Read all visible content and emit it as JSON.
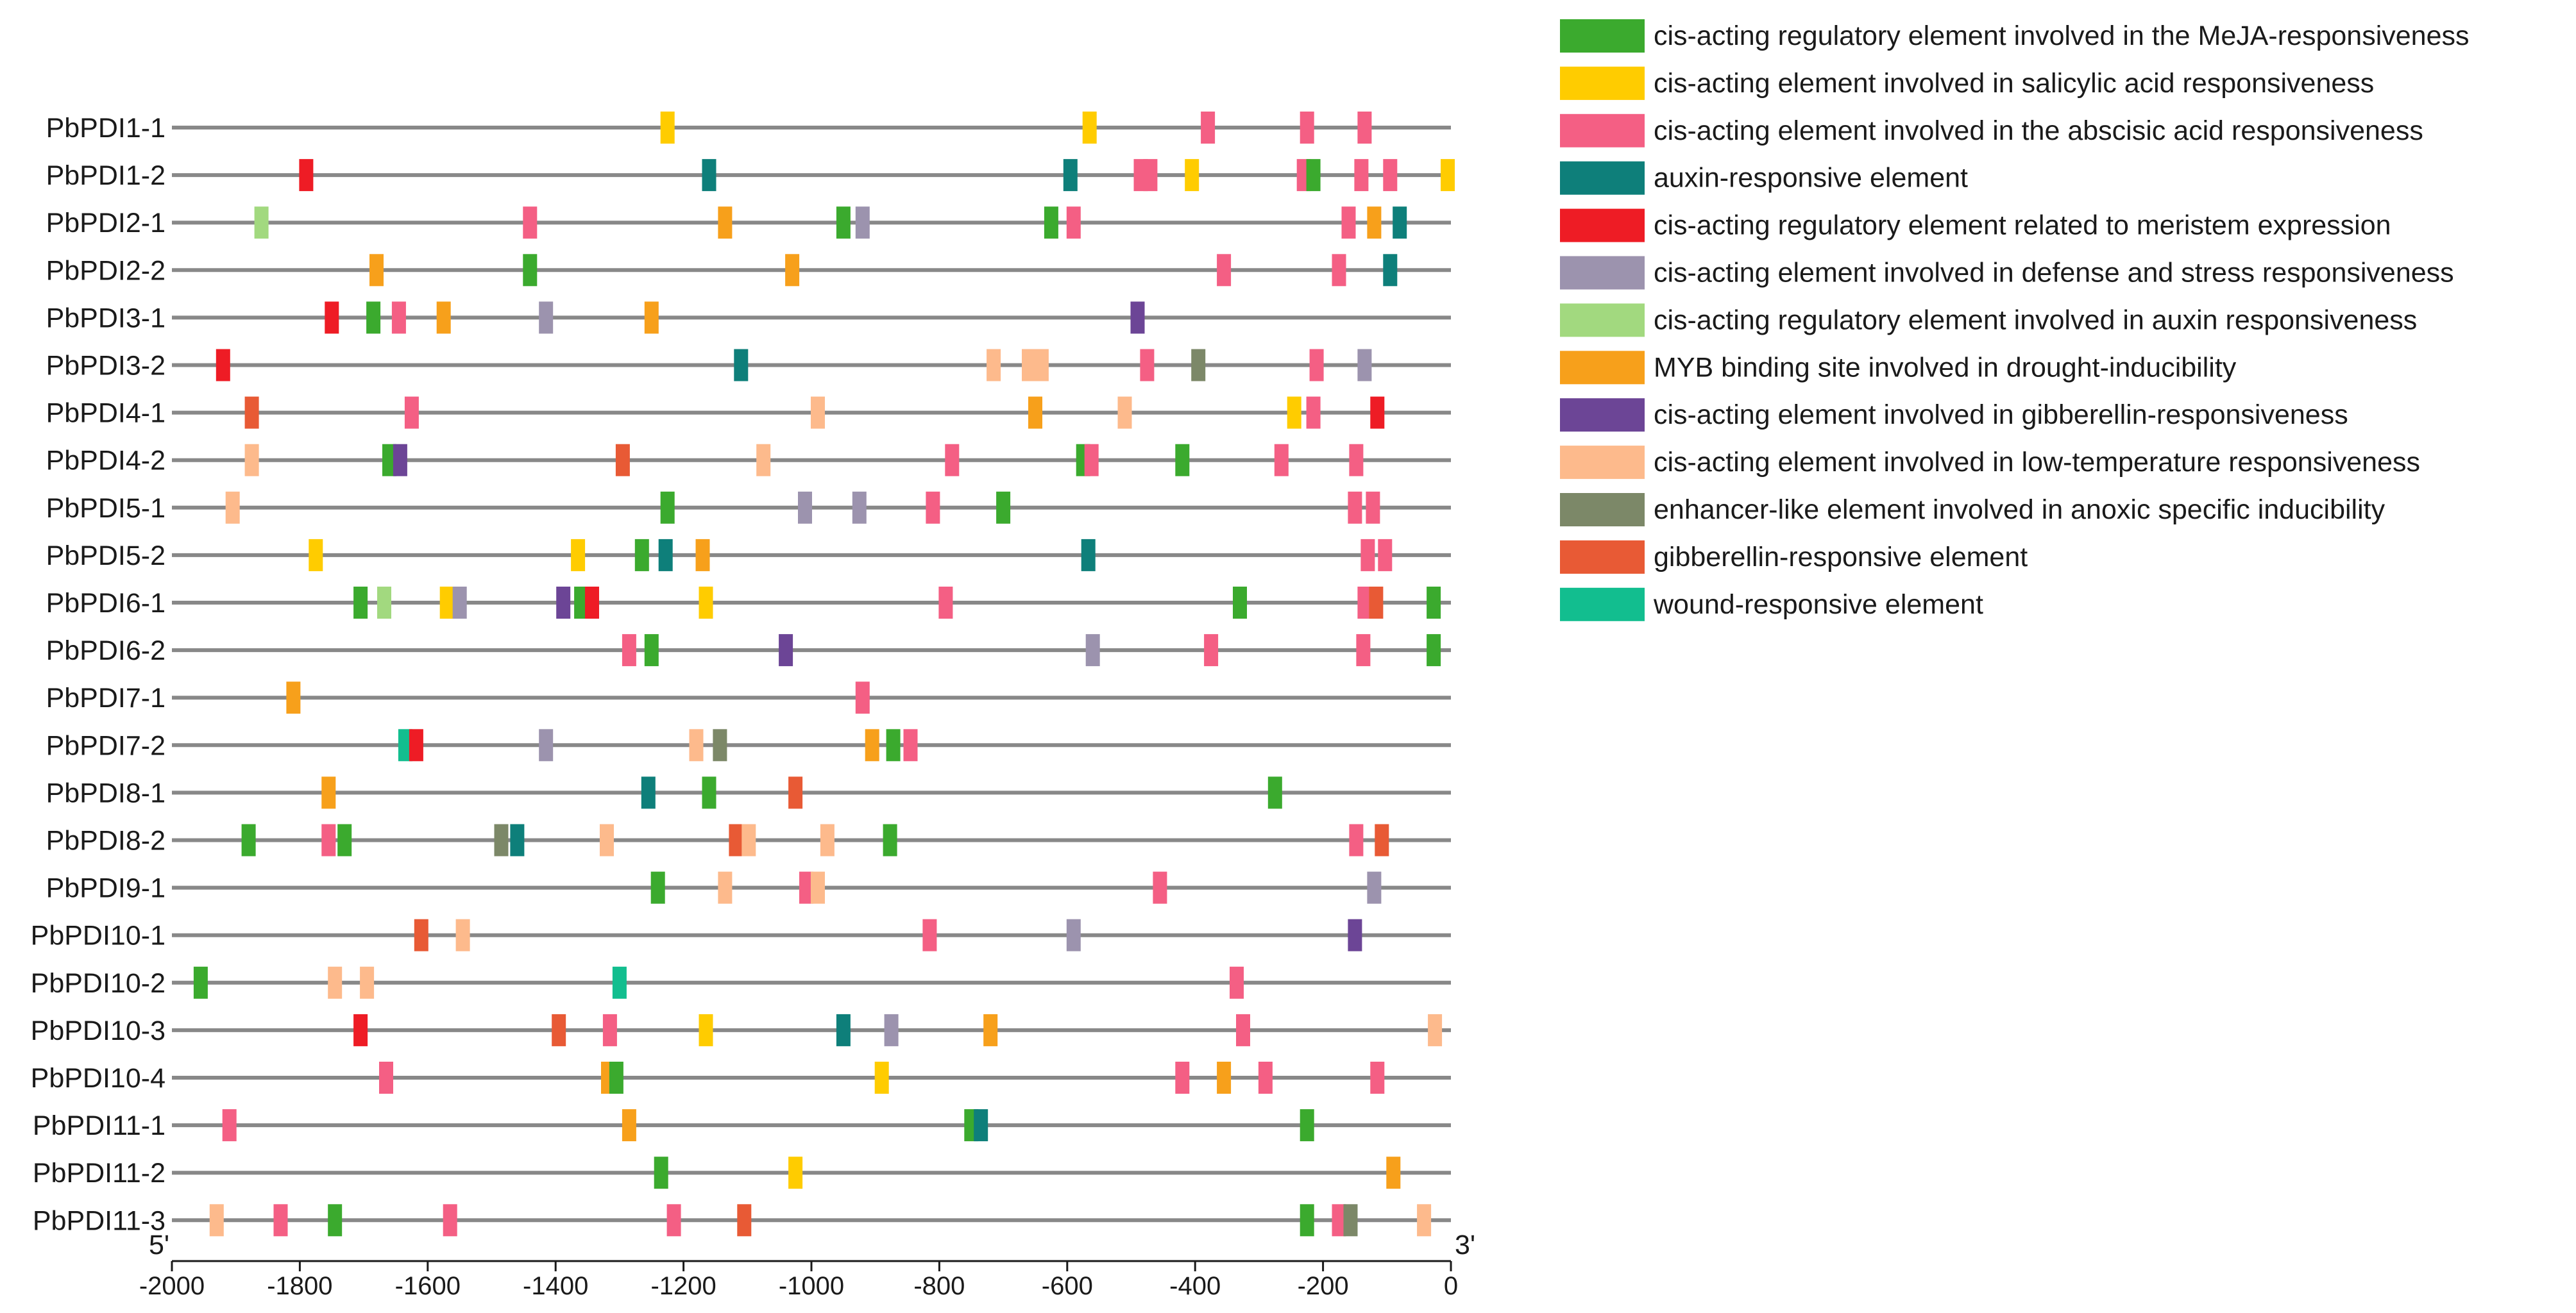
{
  "chart_data": {
    "type": "promoter-element-map",
    "x_axis": {
      "range": [
        -2000,
        0
      ],
      "ticks": [
        -2000,
        -1800,
        -1600,
        -1400,
        -1200,
        -1000,
        -800,
        -600,
        -400,
        -200,
        0
      ],
      "start_label": "5'",
      "end_label": "3'"
    },
    "legend": [
      {
        "key": "meja",
        "label": "cis-acting regulatory element involved in the MeJA-responsiveness",
        "color": "#3BAA2E"
      },
      {
        "key": "sa",
        "label": "cis-acting element involved in salicylic acid responsiveness",
        "color": "#FFCC00"
      },
      {
        "key": "aba",
        "label": "cis-acting element involved in the abscisic acid responsiveness",
        "color": "#F45F84"
      },
      {
        "key": "auxin",
        "label": "auxin-responsive element",
        "color": "#0E7F7A"
      },
      {
        "key": "meristem",
        "label": "cis-acting regulatory element related to meristem expression",
        "color": "#EE1C25"
      },
      {
        "key": "defense",
        "label": "cis-acting element involved in defense and stress responsiveness",
        "color": "#9C93AE"
      },
      {
        "key": "auxin2",
        "label": "cis-acting regulatory element involved in auxin responsiveness",
        "color": "#A2D97F"
      },
      {
        "key": "myb",
        "label": "MYB binding site involved in drought-inducibility",
        "color": "#F7A01B"
      },
      {
        "key": "ga",
        "label": "cis-acting element involved in gibberellin-responsiveness",
        "color": "#6C4596"
      },
      {
        "key": "lowtemp",
        "label": "cis-acting element involved in low-temperature responsiveness",
        "color": "#FDBA8C"
      },
      {
        "key": "anoxic",
        "label": "enhancer-like element involved in anoxic specific inducibility",
        "color": "#7C8868"
      },
      {
        "key": "ga2",
        "label": "gibberellin-responsive element",
        "color": "#E85A35"
      },
      {
        "key": "wound",
        "label": "wound-responsive element",
        "color": "#12BE8F"
      }
    ],
    "genes": [
      {
        "name": "PbPDI1-1",
        "elements": [
          [
            "sa",
            -1225
          ],
          [
            "sa",
            -565
          ],
          [
            "aba",
            -380
          ],
          [
            "aba",
            -225
          ],
          [
            "aba",
            -135
          ]
        ]
      },
      {
        "name": "PbPDI1-2",
        "elements": [
          [
            "meristem",
            -1790
          ],
          [
            "auxin",
            -1160
          ],
          [
            "auxin",
            -595
          ],
          [
            "aba",
            -485
          ],
          [
            "aba",
            -470
          ],
          [
            "sa",
            -405
          ],
          [
            "aba",
            -230
          ],
          [
            "meja",
            -215
          ],
          [
            "aba",
            -140
          ],
          [
            "aba",
            -95
          ],
          [
            "sa",
            -5
          ]
        ]
      },
      {
        "name": "PbPDI2-1",
        "elements": [
          [
            "auxin2",
            -1860
          ],
          [
            "aba",
            -1440
          ],
          [
            "myb",
            -1135
          ],
          [
            "meja",
            -950
          ],
          [
            "defense",
            -920
          ],
          [
            "meja",
            -625
          ],
          [
            "aba",
            -590
          ],
          [
            "aba",
            -160
          ],
          [
            "myb",
            -120
          ],
          [
            "auxin",
            -80
          ]
        ]
      },
      {
        "name": "PbPDI2-2",
        "elements": [
          [
            "myb",
            -1680
          ],
          [
            "meja",
            -1440
          ],
          [
            "myb",
            -1030
          ],
          [
            "aba",
            -355
          ],
          [
            "aba",
            -175
          ],
          [
            "auxin",
            -95
          ]
        ]
      },
      {
        "name": "PbPDI3-1",
        "elements": [
          [
            "meristem",
            -1750
          ],
          [
            "meja",
            -1685
          ],
          [
            "aba",
            -1645
          ],
          [
            "myb",
            -1575
          ],
          [
            "defense",
            -1415
          ],
          [
            "myb",
            -1250
          ],
          [
            "ga",
            -490
          ]
        ]
      },
      {
        "name": "PbPDI3-2",
        "elements": [
          [
            "meristem",
            -1920
          ],
          [
            "auxin",
            -1110
          ],
          [
            "lowtemp",
            -715
          ],
          [
            "lowtemp",
            -660
          ],
          [
            "lowtemp",
            -640
          ],
          [
            "aba",
            -475
          ],
          [
            "anoxic",
            -395
          ],
          [
            "aba",
            -210
          ],
          [
            "defense",
            -135
          ]
        ]
      },
      {
        "name": "PbPDI4-1",
        "elements": [
          [
            "ga2",
            -1875
          ],
          [
            "aba",
            -1625
          ],
          [
            "lowtemp",
            -990
          ],
          [
            "myb",
            -650
          ],
          [
            "lowtemp",
            -510
          ],
          [
            "sa",
            -245
          ],
          [
            "aba",
            -215
          ],
          [
            "meristem",
            -115
          ]
        ]
      },
      {
        "name": "PbPDI4-2",
        "elements": [
          [
            "lowtemp",
            -1875
          ],
          [
            "meja",
            -1660
          ],
          [
            "ga",
            -1643
          ],
          [
            "ga2",
            -1295
          ],
          [
            "lowtemp",
            -1075
          ],
          [
            "aba",
            -780
          ],
          [
            "meja",
            -575
          ],
          [
            "aba",
            -562
          ],
          [
            "meja",
            -420
          ],
          [
            "aba",
            -265
          ],
          [
            "aba",
            -148
          ]
        ]
      },
      {
        "name": "PbPDI5-1",
        "elements": [
          [
            "lowtemp",
            -1905
          ],
          [
            "meja",
            -1225
          ],
          [
            "defense",
            -1010
          ],
          [
            "defense",
            -925
          ],
          [
            "aba",
            -810
          ],
          [
            "meja",
            -700
          ],
          [
            "aba",
            -150
          ],
          [
            "aba",
            -122
          ]
        ]
      },
      {
        "name": "PbPDI5-2",
        "elements": [
          [
            "sa",
            -1775
          ],
          [
            "sa",
            -1365
          ],
          [
            "meja",
            -1265
          ],
          [
            "auxin",
            -1228
          ],
          [
            "myb",
            -1170
          ],
          [
            "auxin",
            -567
          ],
          [
            "aba",
            -130
          ],
          [
            "aba",
            -103
          ]
        ]
      },
      {
        "name": "PbPDI6-1",
        "elements": [
          [
            "meja",
            -1705
          ],
          [
            "auxin2",
            -1668
          ],
          [
            "sa",
            -1570
          ],
          [
            "defense",
            -1550
          ],
          [
            "ga",
            -1388
          ],
          [
            "meja",
            -1360
          ],
          [
            "meristem",
            -1343
          ],
          [
            "sa",
            -1165
          ],
          [
            "aba",
            -790
          ],
          [
            "meja",
            -330
          ],
          [
            "aba",
            -135
          ],
          [
            "ga2",
            -117
          ],
          [
            "meja",
            -27
          ]
        ]
      },
      {
        "name": "PbPDI6-2",
        "elements": [
          [
            "aba",
            -1285
          ],
          [
            "meja",
            -1250
          ],
          [
            "ga",
            -1040
          ],
          [
            "defense",
            -560
          ],
          [
            "aba",
            -375
          ],
          [
            "aba",
            -137
          ],
          [
            "meja",
            -27
          ]
        ]
      },
      {
        "name": "PbPDI7-1",
        "elements": [
          [
            "myb",
            -1810
          ],
          [
            "aba",
            -920
          ]
        ]
      },
      {
        "name": "PbPDI7-2",
        "elements": [
          [
            "wound",
            -1635
          ],
          [
            "meristem",
            -1618
          ],
          [
            "defense",
            -1415
          ],
          [
            "lowtemp",
            -1180
          ],
          [
            "anoxic",
            -1143
          ],
          [
            "myb",
            -905
          ],
          [
            "meja",
            -872
          ],
          [
            "aba",
            -845
          ]
        ]
      },
      {
        "name": "PbPDI8-1",
        "elements": [
          [
            "myb",
            -1755
          ],
          [
            "auxin",
            -1255
          ],
          [
            "meja",
            -1160
          ],
          [
            "ga2",
            -1025
          ],
          [
            "meja",
            -275
          ]
        ]
      },
      {
        "name": "PbPDI8-2",
        "elements": [
          [
            "meja",
            -1880
          ],
          [
            "aba",
            -1755
          ],
          [
            "meja",
            -1730
          ],
          [
            "anoxic",
            -1485
          ],
          [
            "auxin",
            -1460
          ],
          [
            "lowtemp",
            -1320
          ],
          [
            "ga2",
            -1118
          ],
          [
            "lowtemp",
            -1098
          ],
          [
            "lowtemp",
            -975
          ],
          [
            "meja",
            -877
          ],
          [
            "aba",
            -148
          ],
          [
            "ga2",
            -108
          ]
        ]
      },
      {
        "name": "PbPDI9-1",
        "elements": [
          [
            "meja",
            -1240
          ],
          [
            "lowtemp",
            -1135
          ],
          [
            "aba",
            -1008
          ],
          [
            "lowtemp",
            -990
          ],
          [
            "aba",
            -455
          ],
          [
            "defense",
            -120
          ]
        ]
      },
      {
        "name": "PbPDI10-1",
        "elements": [
          [
            "ga2",
            -1610
          ],
          [
            "lowtemp",
            -1545
          ],
          [
            "aba",
            -815
          ],
          [
            "defense",
            -590
          ],
          [
            "ga",
            -150
          ]
        ]
      },
      {
        "name": "PbPDI10-2",
        "elements": [
          [
            "meja",
            -1955
          ],
          [
            "lowtemp",
            -1745
          ],
          [
            "lowtemp",
            -1695
          ],
          [
            "wound",
            -1300
          ],
          [
            "aba",
            -335
          ]
        ]
      },
      {
        "name": "PbPDI10-3",
        "elements": [
          [
            "meristem",
            -1705
          ],
          [
            "ga2",
            -1395
          ],
          [
            "aba",
            -1315
          ],
          [
            "sa",
            -1165
          ],
          [
            "auxin",
            -950
          ],
          [
            "defense",
            -875
          ],
          [
            "myb",
            -720
          ],
          [
            "aba",
            -325
          ],
          [
            "lowtemp",
            -25
          ]
        ]
      },
      {
        "name": "PbPDI10-4",
        "elements": [
          [
            "aba",
            -1665
          ],
          [
            "myb",
            -1318
          ],
          [
            "meja",
            -1305
          ],
          [
            "sa",
            -890
          ],
          [
            "aba",
            -420
          ],
          [
            "myb",
            -355
          ],
          [
            "aba",
            -290
          ],
          [
            "aba",
            -115
          ]
        ]
      },
      {
        "name": "PbPDI11-1",
        "elements": [
          [
            "aba",
            -1910
          ],
          [
            "myb",
            -1285
          ],
          [
            "meja",
            -750
          ],
          [
            "auxin",
            -735
          ],
          [
            "meja",
            -225
          ]
        ]
      },
      {
        "name": "PbPDI11-2",
        "elements": [
          [
            "meja",
            -1235
          ],
          [
            "sa",
            -1025
          ],
          [
            "myb",
            -90
          ]
        ]
      },
      {
        "name": "PbPDI11-3",
        "elements": [
          [
            "lowtemp",
            -1930
          ],
          [
            "aba",
            -1830
          ],
          [
            "meja",
            -1745
          ],
          [
            "aba",
            -1565
          ],
          [
            "aba",
            -1215
          ],
          [
            "ga2",
            -1105
          ],
          [
            "meja",
            -225
          ],
          [
            "aba",
            -175
          ],
          [
            "anoxic",
            -157
          ],
          [
            "lowtemp",
            -42
          ]
        ]
      }
    ]
  }
}
